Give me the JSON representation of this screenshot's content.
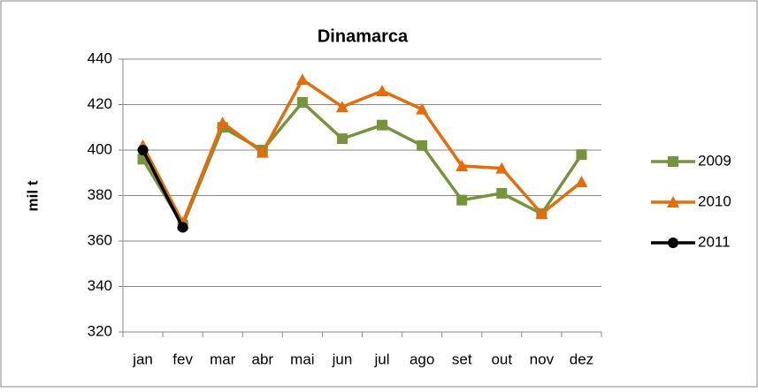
{
  "chart_data": {
    "type": "line",
    "title": "Dinamarca",
    "y_label": "mil t",
    "categories": [
      "jan",
      "fev",
      "mar",
      "abr",
      "mai",
      "jun",
      "jul",
      "ago",
      "set",
      "out",
      "nov",
      "dez"
    ],
    "series": [
      {
        "name": "2009",
        "color": "#77933c",
        "marker": "square",
        "values": [
          396,
          367,
          410,
          400,
          421,
          405,
          411,
          402,
          378,
          381,
          372,
          398
        ]
      },
      {
        "name": "2010",
        "color": "#e46c0a",
        "marker": "triangle",
        "values": [
          402,
          368,
          412,
          399,
          431,
          419,
          426,
          418,
          393,
          392,
          372,
          386
        ]
      },
      {
        "name": "2011",
        "color": "#000000",
        "marker": "circle",
        "values": [
          400,
          366,
          null,
          null,
          null,
          null,
          null,
          null,
          null,
          null,
          null,
          null
        ]
      }
    ],
    "ylim": [
      320,
      440
    ],
    "yticks": [
      320,
      340,
      360,
      380,
      400,
      420,
      440
    ],
    "grid": true,
    "legend": "right"
  }
}
